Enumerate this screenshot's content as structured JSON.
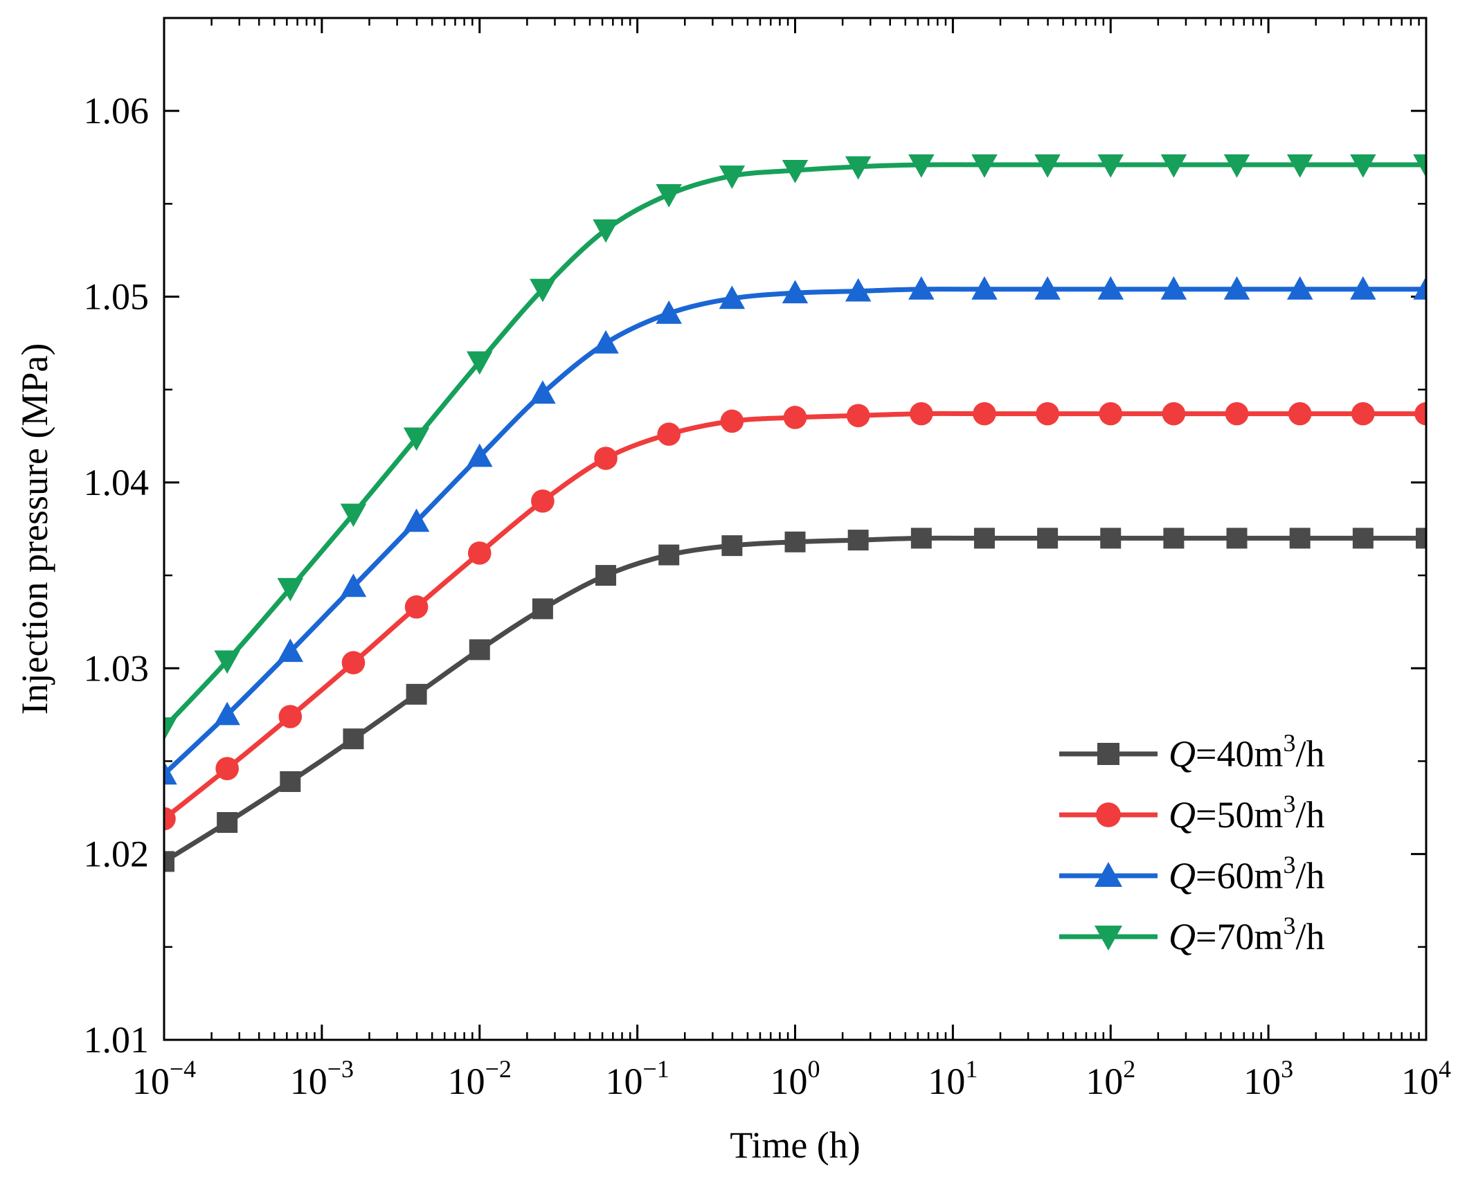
{
  "chart_data": {
    "type": "line",
    "title": "",
    "xlabel": "Time (h)",
    "ylabel": "Injection pressure (MPa)",
    "xscale": "log",
    "xlim_exponent": [
      -4,
      4
    ],
    "ylim": [
      1.01,
      1.065
    ],
    "xticks": [
      {
        "base": "10",
        "exp": "−4",
        "value": -4
      },
      {
        "base": "10",
        "exp": "−3",
        "value": -3
      },
      {
        "base": "10",
        "exp": "−2",
        "value": -2
      },
      {
        "base": "10",
        "exp": "−1",
        "value": -1
      },
      {
        "base": "10",
        "exp": "0",
        "value": 0
      },
      {
        "base": "10",
        "exp": "1",
        "value": 1
      },
      {
        "base": "10",
        "exp": "2",
        "value": 2
      },
      {
        "base": "10",
        "exp": "3",
        "value": 3
      },
      {
        "base": "10",
        "exp": "4",
        "value": 4
      }
    ],
    "yticks": [
      {
        "label": "1.01",
        "value": 1.01
      },
      {
        "label": "1.02",
        "value": 1.02
      },
      {
        "label": "1.03",
        "value": 1.03
      },
      {
        "label": "1.04",
        "value": 1.04
      },
      {
        "label": "1.05",
        "value": 1.05
      },
      {
        "label": "1.06",
        "value": 1.06
      }
    ],
    "yminor": [
      1.015,
      1.025,
      1.035,
      1.045,
      1.055,
      1.065
    ],
    "legend_position": "bottom-right",
    "x_log10": [
      -4.0,
      -3.6,
      -3.2,
      -2.8,
      -2.4,
      -2.0,
      -1.6,
      -1.2,
      -0.8,
      -0.4,
      0.0,
      0.4,
      0.8,
      1.2,
      1.6,
      2.0,
      2.4,
      2.8,
      3.2,
      3.6,
      4.0
    ],
    "series": [
      {
        "name_prefix": "Q",
        "name_middle": "=40m",
        "name_sup": "3",
        "name_suffix": "/h",
        "color": "#4a4a4a",
        "marker": "square",
        "values": [
          1.0196,
          1.0217,
          1.0239,
          1.0262,
          1.0286,
          1.031,
          1.0332,
          1.035,
          1.0361,
          1.0366,
          1.0368,
          1.0369,
          1.037,
          1.037,
          1.037,
          1.037,
          1.037,
          1.037,
          1.037,
          1.037,
          1.037
        ]
      },
      {
        "name_prefix": "Q",
        "name_middle": "=50m",
        "name_sup": "3",
        "name_suffix": "/h",
        "color": "#f03c3c",
        "marker": "circle",
        "values": [
          1.0219,
          1.0246,
          1.0274,
          1.0303,
          1.0333,
          1.0362,
          1.039,
          1.0413,
          1.0426,
          1.0433,
          1.0435,
          1.0436,
          1.0437,
          1.0437,
          1.0437,
          1.0437,
          1.0437,
          1.0437,
          1.0437,
          1.0437,
          1.0437
        ]
      },
      {
        "name_prefix": "Q",
        "name_middle": "=60m",
        "name_sup": "3",
        "name_suffix": "/h",
        "color": "#1a66d4",
        "marker": "triangle-up",
        "values": [
          1.0243,
          1.0275,
          1.0309,
          1.0344,
          1.0379,
          1.0414,
          1.0448,
          1.0475,
          1.0491,
          1.0499,
          1.0502,
          1.0503,
          1.0504,
          1.0504,
          1.0504,
          1.0504,
          1.0504,
          1.0504,
          1.0504,
          1.0504,
          1.0504
        ]
      },
      {
        "name_prefix": "Q",
        "name_middle": "=70m",
        "name_sup": "3",
        "name_suffix": "/h",
        "color": "#16a05a",
        "marker": "triangle-down",
        "values": [
          1.0268,
          1.0304,
          1.0343,
          1.0383,
          1.0424,
          1.0465,
          1.0504,
          1.0536,
          1.0555,
          1.0565,
          1.0568,
          1.057,
          1.0571,
          1.0571,
          1.0571,
          1.0571,
          1.0571,
          1.0571,
          1.0571,
          1.0571,
          1.0571
        ]
      }
    ]
  }
}
